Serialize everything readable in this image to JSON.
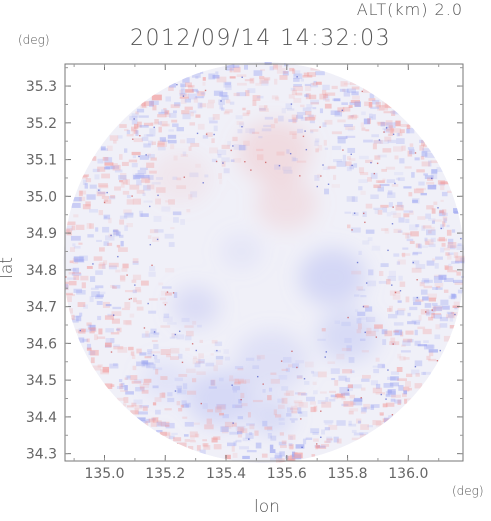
{
  "header": {
    "altitude": "ALT(km) 2.0",
    "timestamp": "2012/09/14 14:32:03"
  },
  "chart_data": {
    "type": "heatmap",
    "title": "2012/09/14 14:32:03",
    "subtitle": "ALT(km) 2.0",
    "xlabel": "lon",
    "ylabel": "lat",
    "x_unit": "(deg)",
    "y_unit": "(deg)",
    "xlim": [
      134.87,
      136.18
    ],
    "ylim": [
      34.28,
      35.36
    ],
    "x_ticks": [
      "135.0",
      "135.2",
      "135.4",
      "135.6",
      "135.8",
      "136.0"
    ],
    "y_ticks": [
      "35.3",
      "35.2",
      "35.1",
      "35.0",
      "34.9",
      "34.8",
      "34.7",
      "34.6",
      "34.5",
      "34.4",
      "34.3"
    ],
    "x_tick_values": [
      135.0,
      135.2,
      135.4,
      135.6,
      135.8,
      136.0
    ],
    "y_tick_values": [
      35.3,
      35.2,
      35.1,
      35.0,
      34.9,
      34.8,
      34.7,
      34.6,
      34.5,
      34.4,
      34.3
    ],
    "grid": false,
    "domain_shape": "circle",
    "center": [
      135.525,
      34.82
    ],
    "colors": {
      "positive": "#f2a0a0",
      "negative": "#a0a8f2",
      "neutral": "#f0f0f8"
    },
    "patches": [
      {
        "lon": 135.56,
        "lat": 35.12,
        "r": 0.12,
        "sign": 1,
        "v": 0.28
      },
      {
        "lon": 135.6,
        "lat": 34.98,
        "r": 0.1,
        "sign": 1,
        "v": 0.22
      },
      {
        "lon": 135.25,
        "lat": 35.05,
        "r": 0.1,
        "sign": 1,
        "v": 0.12
      },
      {
        "lon": 135.75,
        "lat": 34.78,
        "r": 0.11,
        "sign": -1,
        "v": 0.35
      },
      {
        "lon": 135.8,
        "lat": 34.62,
        "r": 0.1,
        "sign": -1,
        "v": 0.3
      },
      {
        "lon": 135.55,
        "lat": 34.55,
        "r": 0.12,
        "sign": -1,
        "v": 0.22
      },
      {
        "lon": 135.3,
        "lat": 34.7,
        "r": 0.08,
        "sign": -1,
        "v": 0.28
      },
      {
        "lon": 135.38,
        "lat": 34.45,
        "r": 0.11,
        "sign": -1,
        "v": 0.32
      },
      {
        "lon": 135.55,
        "lat": 34.4,
        "r": 0.07,
        "sign": -1,
        "v": 0.3
      },
      {
        "lon": 135.2,
        "lat": 34.5,
        "r": 0.08,
        "sign": -1,
        "v": 0.18
      },
      {
        "lon": 135.45,
        "lat": 34.85,
        "r": 0.07,
        "sign": -1,
        "v": 0.14
      }
    ]
  }
}
